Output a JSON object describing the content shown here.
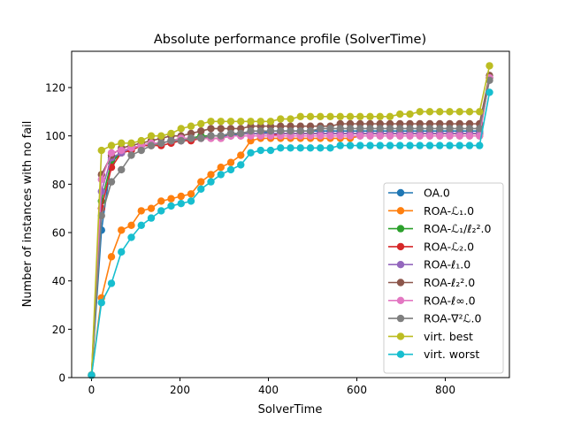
{
  "chart_data": {
    "type": "line",
    "title": "Absolute performance profile (SolverTime)",
    "xlabel": "SolverTime",
    "ylabel": "Number of instances with no fail",
    "xlim": [
      -45,
      945
    ],
    "ylim": [
      0,
      135
    ],
    "xticks": [
      0,
      200,
      400,
      600,
      800
    ],
    "yticks": [
      0,
      20,
      40,
      60,
      80,
      100,
      120
    ],
    "grid": false,
    "legend_position": "lower-right",
    "x": [
      0,
      22.5,
      45,
      67.5,
      90,
      112.5,
      135,
      157.5,
      180,
      202.5,
      225,
      247.5,
      270,
      292.5,
      315,
      337.5,
      360,
      382.5,
      405,
      427.5,
      450,
      472.5,
      495,
      517.5,
      540,
      562.5,
      585,
      607.5,
      630,
      652.5,
      675,
      697.5,
      720,
      742.5,
      765,
      787.5,
      810,
      832.5,
      855,
      877.5,
      900
    ],
    "series": [
      {
        "name": "OA.0",
        "color": "#1f77b4",
        "values": [
          1,
          61,
          90,
          93,
          95,
          96,
          96,
          97,
          98,
          98,
          99,
          99,
          100,
          100,
          100,
          101,
          101,
          101,
          102,
          102,
          102,
          102,
          102,
          102,
          102,
          102,
          102,
          102,
          102,
          102,
          102,
          102,
          102,
          102,
          102,
          102,
          102,
          102,
          102,
          102,
          124
        ]
      },
      {
        "name": "ROA-ℒ₁.0",
        "color": "#ff7f0e",
        "values": [
          1,
          33,
          50,
          61,
          63,
          69,
          70,
          73,
          74,
          75,
          76,
          81,
          84,
          87,
          89,
          92,
          98,
          99,
          99,
          99,
          99,
          99,
          99,
          99,
          99,
          99,
          99,
          100,
          100,
          100,
          100,
          100,
          100,
          100,
          100,
          100,
          100,
          100,
          100,
          100,
          124
        ]
      },
      {
        "name": "ROA-ℒ₁/ℓ₂².0",
        "color": "#2ca02c",
        "values": [
          1,
          73,
          89,
          93,
          95,
          96,
          97,
          97,
          98,
          99,
          99,
          100,
          100,
          100,
          101,
          101,
          101,
          101,
          101,
          101,
          101,
          101,
          101,
          101,
          101,
          101,
          101,
          101,
          101,
          101,
          101,
          101,
          101,
          101,
          101,
          101,
          101,
          101,
          101,
          101,
          124
        ]
      },
      {
        "name": "ROA-ℒ₂.0",
        "color": "#d62728",
        "values": [
          1,
          70,
          87,
          93,
          94,
          96,
          96,
          96,
          97,
          98,
          98,
          99,
          99,
          99,
          100,
          100,
          100,
          100,
          100,
          101,
          101,
          101,
          101,
          101,
          101,
          101,
          101,
          101,
          101,
          101,
          101,
          101,
          101,
          101,
          101,
          101,
          101,
          101,
          101,
          101,
          124
        ]
      },
      {
        "name": "ROA-ℓ₁.0",
        "color": "#9467bd",
        "values": [
          1,
          77,
          91,
          93,
          95,
          96,
          97,
          97,
          98,
          98,
          99,
          99,
          100,
          100,
          101,
          101,
          101,
          101,
          101,
          101,
          101,
          101,
          101,
          101,
          101,
          101,
          101,
          101,
          101,
          101,
          101,
          101,
          101,
          101,
          101,
          101,
          101,
          101,
          101,
          101,
          124
        ]
      },
      {
        "name": "ROA-ℓ₂².0",
        "color": "#8c564b",
        "values": [
          1,
          84,
          92,
          95,
          96,
          97,
          98,
          99,
          100,
          100,
          101,
          102,
          103,
          103,
          103,
          103,
          104,
          104,
          104,
          104,
          104,
          104,
          104,
          104,
          104,
          105,
          105,
          105,
          105,
          105,
          105,
          105,
          105,
          105,
          105,
          105,
          105,
          105,
          105,
          105,
          125
        ]
      },
      {
        "name": "ROA-ℓ∞.0",
        "color": "#e377c2",
        "values": [
          1,
          82,
          93,
          94,
          95,
          96,
          97,
          97,
          98,
          99,
          99,
          99,
          99,
          99,
          100,
          100,
          100,
          100,
          100,
          100,
          100,
          100,
          100,
          100,
          100,
          100,
          100,
          100,
          100,
          100,
          100,
          100,
          100,
          100,
          100,
          100,
          100,
          100,
          100,
          100,
          124
        ]
      },
      {
        "name": "ROA-∇²ℒ.0",
        "color": "#7f7f7f",
        "values": [
          1,
          67,
          81,
          86,
          92,
          94,
          96,
          97,
          98,
          98,
          99,
          99,
          100,
          100,
          101,
          101,
          102,
          102,
          102,
          102,
          102,
          102,
          102,
          103,
          103,
          103,
          103,
          103,
          103,
          103,
          103,
          103,
          103,
          103,
          103,
          103,
          103,
          103,
          103,
          103,
          123
        ]
      },
      {
        "name": "virt. best",
        "color": "#bcbd22",
        "values": [
          1,
          94,
          96,
          97,
          97,
          98,
          100,
          100,
          101,
          103,
          104,
          105,
          106,
          106,
          106,
          106,
          106,
          106,
          106,
          107,
          107,
          108,
          108,
          108,
          108,
          108,
          108,
          108,
          108,
          108,
          108,
          109,
          109,
          110,
          110,
          110,
          110,
          110,
          110,
          110,
          129
        ]
      },
      {
        "name": "virt. worst",
        "color": "#17becf",
        "values": [
          1,
          31,
          39,
          52,
          58,
          63,
          66,
          69,
          71,
          72,
          73,
          78,
          81,
          84,
          86,
          88,
          93,
          94,
          94,
          95,
          95,
          95,
          95,
          95,
          95,
          96,
          96,
          96,
          96,
          96,
          96,
          96,
          96,
          96,
          96,
          96,
          96,
          96,
          96,
          96,
          118
        ]
      }
    ]
  }
}
